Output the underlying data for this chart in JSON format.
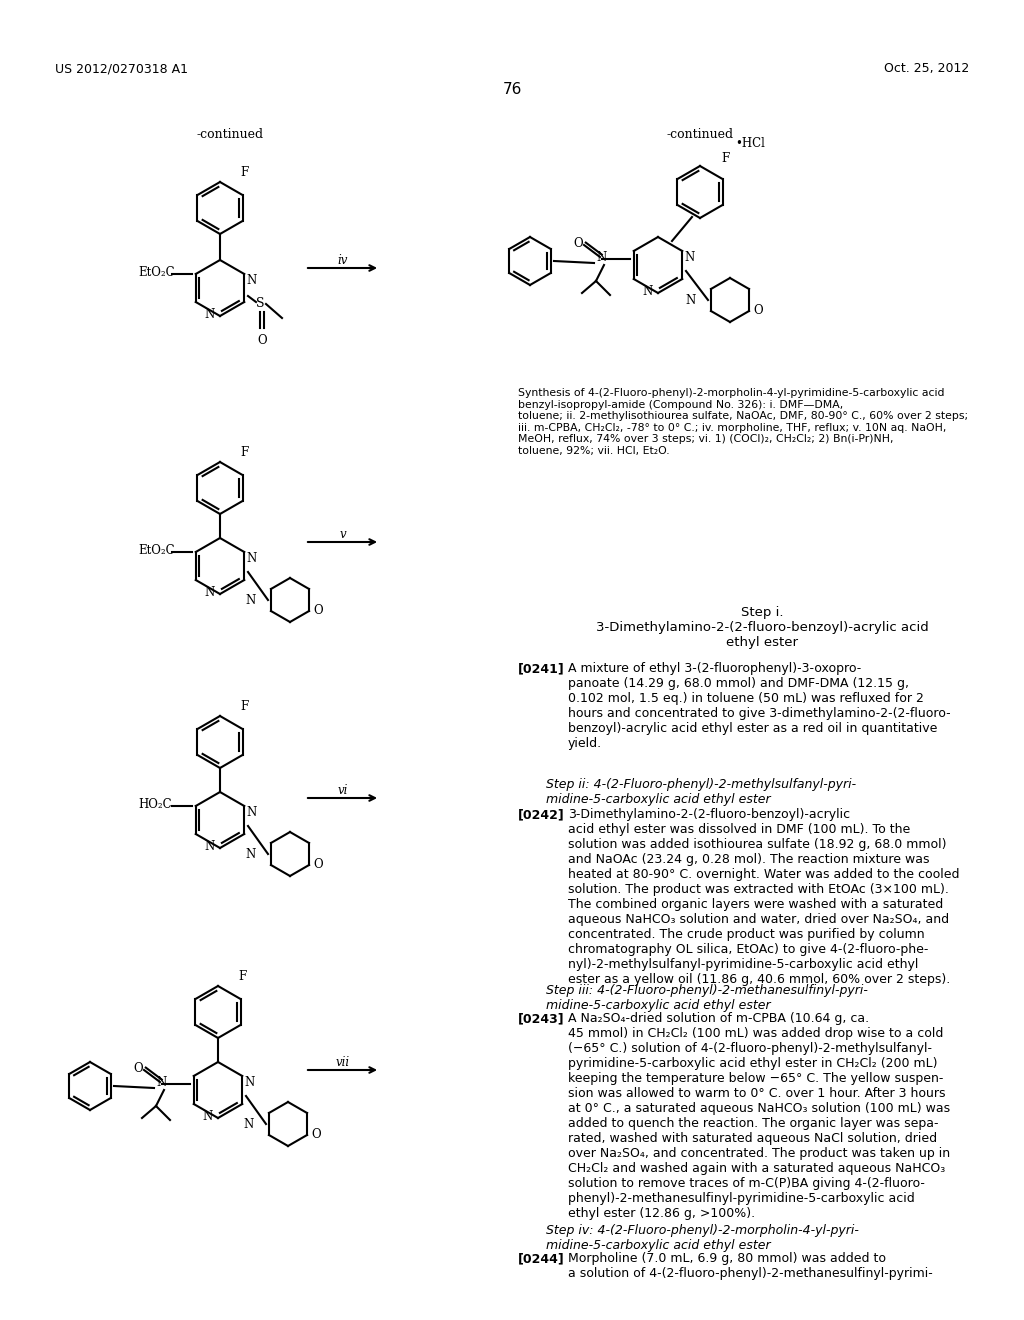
{
  "bg_color": "#ffffff",
  "header_left": "US 2012/0270318 A1",
  "header_right": "Oct. 25, 2012",
  "page_number": "76",
  "continued_left": "-continued",
  "continued_right": "-continued",
  "caption_text": "Synthesis of 4-(2-Fluoro-phenyl)-2-morpholin-4-yl-pyrimidine-5-carboxylic acid\nbenzyl-isopropyl-amide (Compound No. 326): i. DMF—DMA,\ntoluene; ii. 2-methylisothiourea sulfate, NaOAc, DMF, 80-90° C., 60% over 2 steps;\niii. m-CPBA, CH₂Cl₂, -78° to 0° C.; iv. morpholine, THF, reflux; v. 10N aq. NaOH,\nMeOH, reflux, 74% over 3 steps; vi. 1) (COCl)₂, CH₂Cl₂; 2) Bn(i-Pr)NH,\ntoluene, 92%; vii. HCl, Et₂O.",
  "step_i_title": "Step i.\n3-Dimethylamino-2-(2-fluoro-benzoyl)-acrylic acid\nethyl ester",
  "step_i_para_label": "[0241]",
  "step_i_para": "A mixture of ethyl 3-(2-fluorophenyl)-3-oxopro-\npanoate (14.29 g, 68.0 mmol) and DMF-DMA (12.15 g,\n0.102 mol, 1.5 eq.) in toluene (50 mL) was refluxed for 2\nhours and concentrated to give 3-dimethylamino-2-(2-fluoro-\nbenzoyl)-acrylic acid ethyl ester as a red oil in quantitative\nyield.",
  "step_ii_title": "Step ii: 4-(2-Fluoro-phenyl)-2-methylsulfanyl-pyri-\nmidine-5-carboxylic acid ethyl ester",
  "step_ii_para_label": "[0242]",
  "step_ii_para": "3-Dimethylamino-2-(2-fluoro-benzoyl)-acrylic\nacid ethyl ester was dissolved in DMF (100 mL). To the\nsolution was added isothiourea sulfate (18.92 g, 68.0 mmol)\nand NaOAc (23.24 g, 0.28 mol). The reaction mixture was\nheated at 80-90° C. overnight. Water was added to the cooled\nsolution. The product was extracted with EtOAc (3×100 mL).\nThe combined organic layers were washed with a saturated\naqueous NaHCO₃ solution and water, dried over Na₂SO₄, and\nconcentrated. The crude product was purified by column\nchromatography OL silica, EtOAc) to give 4-(2-fluoro-phe-\nnyl)-2-methylsulfanyl-pyrimidine-5-carboxylic acid ethyl\nester as a yellow oil (11.86 g, 40.6 mmol, 60% over 2 steps).",
  "step_iii_title": "Step iii: 4-(2-Fluoro-phenyl)-2-methanesulfinyl-pyri-\nmidine-5-carboxylic acid ethyl ester",
  "step_iii_para_label": "[0243]",
  "step_iii_para": "A Na₂SO₄-dried solution of m-CPBA (10.64 g, ca.\n45 mmol) in CH₂Cl₂ (100 mL) was added drop wise to a cold\n(−65° C.) solution of 4-(2-fluoro-phenyl)-2-methylsulfanyl-\npyrimidine-5-carboxylic acid ethyl ester in CH₂Cl₂ (200 mL)\nkeeping the temperature below −65° C. The yellow suspen-\nsion was allowed to warm to 0° C. over 1 hour. After 3 hours\nat 0° C., a saturated aqueous NaHCO₃ solution (100 mL) was\nadded to quench the reaction. The organic layer was sepa-\nrated, washed with saturated aqueous NaCl solution, dried\nover Na₂SO₄, and concentrated. The product was taken up in\nCH₂Cl₂ and washed again with a saturated aqueous NaHCO₃\nsolution to remove traces of m-C(P)BA giving 4-(2-fluoro-\nphenyl)-2-methanesulfinyl-pyrimidine-5-carboxylic acid\nethyl ester (12.86 g, >100%).",
  "step_iv_title": "Step iv: 4-(2-Fluoro-phenyl)-2-morpholin-4-yl-pyri-\nmidine-5-carboxylic acid ethyl ester",
  "step_iv_para_label": "[0244]",
  "step_iv_para": "Morpholine (7.0 mL, 6.9 g, 80 mmol) was added to\na solution of 4-(2-fluoro-phenyl)-2-methanesulfinyl-pyrimi-"
}
